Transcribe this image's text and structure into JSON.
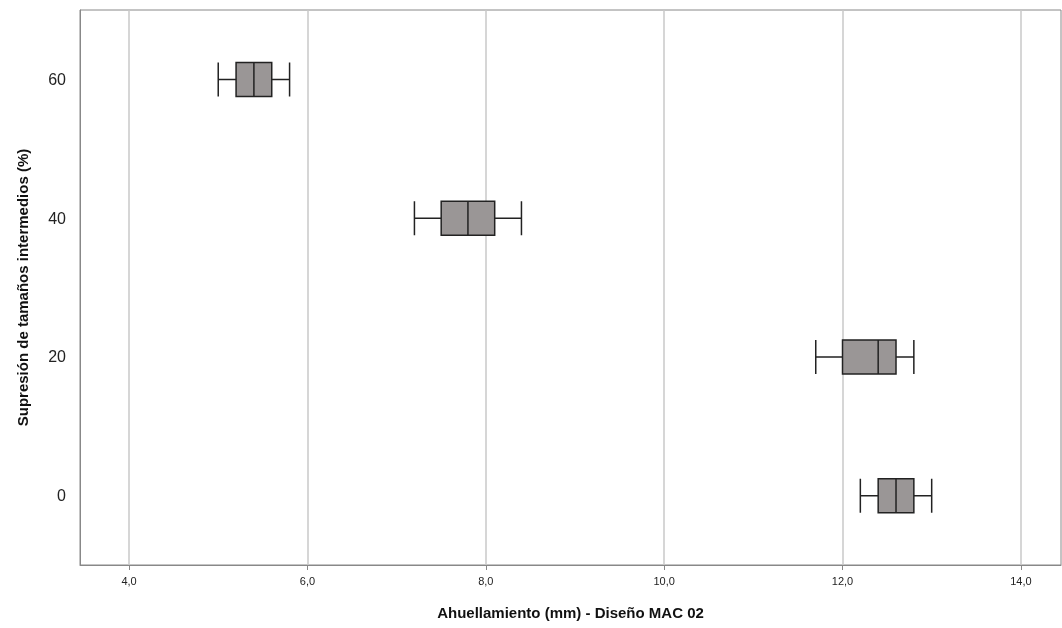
{
  "chart_data": {
    "type": "box",
    "orientation": "horizontal",
    "xlabel": "Ahuellamiento (mm) - Diseño MAC 02",
    "ylabel": "Supresión de tamaños intermedios (%)",
    "categories": [
      "60",
      "40",
      "20",
      "0"
    ],
    "boxes": [
      {
        "low": 5.0,
        "q1": 5.2,
        "median": 5.4,
        "q3": 5.6,
        "high": 5.8
      },
      {
        "low": 7.2,
        "q1": 7.5,
        "median": 7.8,
        "q3": 8.1,
        "high": 8.4
      },
      {
        "low": 11.7,
        "q1": 12.0,
        "median": 12.4,
        "q3": 12.6,
        "high": 12.8
      },
      {
        "low": 12.2,
        "q1": 12.4,
        "median": 12.6,
        "q3": 12.8,
        "high": 13.0
      }
    ],
    "color": "#9a9696",
    "xlim": [
      3.45,
      14.45
    ],
    "xticks": [
      {
        "value": 4,
        "label": "4,0"
      },
      {
        "value": 6,
        "label": "6,0"
      },
      {
        "value": 8,
        "label": "8,0"
      },
      {
        "value": 10,
        "label": "10,0"
      },
      {
        "value": 12,
        "label": "12,0"
      },
      {
        "value": 14,
        "label": "14,0"
      }
    ],
    "grid": "x"
  }
}
